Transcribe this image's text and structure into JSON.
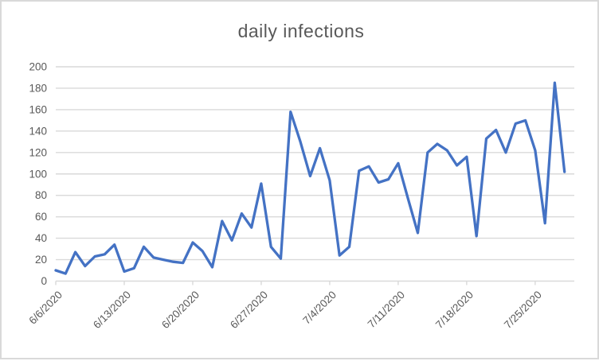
{
  "chart_data": {
    "type": "line",
    "title": "daily infections",
    "xlabel": "",
    "ylabel": "",
    "categories": [
      "6/6/2020",
      "6/7/2020",
      "6/8/2020",
      "6/9/2020",
      "6/10/2020",
      "6/11/2020",
      "6/12/2020",
      "6/13/2020",
      "6/14/2020",
      "6/15/2020",
      "6/16/2020",
      "6/17/2020",
      "6/18/2020",
      "6/19/2020",
      "6/20/2020",
      "6/21/2020",
      "6/22/2020",
      "6/23/2020",
      "6/24/2020",
      "6/25/2020",
      "6/26/2020",
      "6/27/2020",
      "6/28/2020",
      "6/29/2020",
      "6/30/2020",
      "7/1/2020",
      "7/2/2020",
      "7/3/2020",
      "7/4/2020",
      "7/5/2020",
      "7/6/2020",
      "7/7/2020",
      "7/8/2020",
      "7/9/2020",
      "7/10/2020",
      "7/11/2020",
      "7/12/2020",
      "7/13/2020",
      "7/14/2020",
      "7/15/2020",
      "7/16/2020",
      "7/17/2020",
      "7/18/2020",
      "7/19/2020",
      "7/20/2020",
      "7/21/2020",
      "7/22/2020",
      "7/23/2020",
      "7/24/2020",
      "7/25/2020",
      "7/26/2020",
      "7/27/2020",
      "7/28/2020"
    ],
    "values": [
      10,
      7,
      27,
      14,
      23,
      25,
      34,
      9,
      12,
      32,
      22,
      20,
      18,
      17,
      36,
      28,
      13,
      56,
      38,
      63,
      50,
      91,
      32,
      21,
      158,
      130,
      98,
      124,
      94,
      24,
      32,
      103,
      107,
      92,
      95,
      110,
      77,
      45,
      120,
      128,
      122,
      108,
      116,
      42,
      133,
      141,
      120,
      147,
      150,
      122,
      54,
      185,
      102
    ],
    "x_tick_labels": [
      "6/6/2020",
      "6/13/2020",
      "6/20/2020",
      "6/27/2020",
      "7/4/2020",
      "7/11/2020",
      "7/18/2020",
      "7/25/2020"
    ],
    "x_tick_interval_days": 7,
    "x_tick_label_rotation_deg": -45,
    "y_tick_labels": [
      "0",
      "20",
      "40",
      "60",
      "80",
      "100",
      "120",
      "140",
      "160",
      "180",
      "200"
    ],
    "ylim": [
      0,
      200
    ],
    "y_tick_step": 20,
    "grid": "horizontal",
    "legend": "none",
    "colors": {
      "line": "#4472C4",
      "grid": "#D9D9D9",
      "axis": "#D9D9D9",
      "text": "#595959",
      "title_text": "#595959",
      "background": "#FFFFFF",
      "frame_border": "#D9D9D9"
    }
  }
}
